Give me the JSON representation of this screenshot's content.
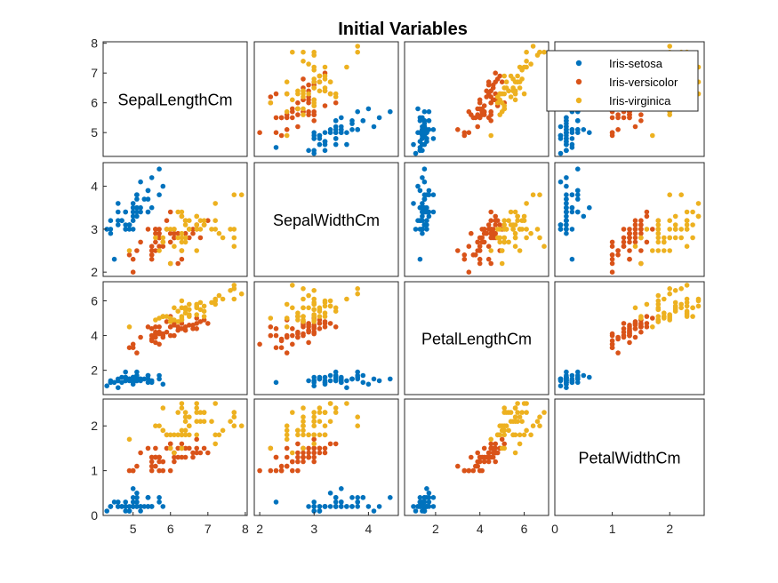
{
  "chart_data": {
    "type": "scatter",
    "title": "Initial Variables",
    "variables": [
      "SepalLengthCm",
      "SepalWidthCm",
      "PetalLengthCm",
      "PetalWidthCm"
    ],
    "ranges": [
      [
        4.2,
        8.05
      ],
      [
        1.9,
        4.55
      ],
      [
        0.6,
        7.1
      ],
      [
        0.0,
        2.6
      ]
    ],
    "ticks": [
      [
        5,
        6,
        7,
        8
      ],
      [
        2,
        3,
        4
      ],
      [
        2,
        4,
        6
      ],
      [
        0,
        1,
        2
      ]
    ],
    "colors": {
      "Iris-setosa": "#0072BD",
      "Iris-versicolor": "#D95319",
      "Iris-virginica": "#EDB120"
    },
    "legend": {
      "position": "top-right",
      "entries": [
        "Iris-setosa",
        "Iris-versicolor",
        "Iris-virginica"
      ]
    },
    "series": [
      {
        "name": "Iris-setosa",
        "points": [
          [
            5.1,
            3.5,
            1.4,
            0.2
          ],
          [
            4.9,
            3.0,
            1.4,
            0.2
          ],
          [
            4.7,
            3.2,
            1.3,
            0.2
          ],
          [
            4.6,
            3.1,
            1.5,
            0.2
          ],
          [
            5.0,
            3.6,
            1.4,
            0.2
          ],
          [
            5.4,
            3.9,
            1.7,
            0.4
          ],
          [
            4.6,
            3.4,
            1.4,
            0.3
          ],
          [
            5.0,
            3.4,
            1.5,
            0.2
          ],
          [
            4.4,
            2.9,
            1.4,
            0.2
          ],
          [
            4.9,
            3.1,
            1.5,
            0.1
          ],
          [
            5.4,
            3.7,
            1.5,
            0.2
          ],
          [
            4.8,
            3.4,
            1.6,
            0.2
          ],
          [
            4.8,
            3.0,
            1.4,
            0.1
          ],
          [
            4.3,
            3.0,
            1.1,
            0.1
          ],
          [
            5.8,
            4.0,
            1.2,
            0.2
          ],
          [
            5.7,
            4.4,
            1.5,
            0.4
          ],
          [
            5.4,
            3.9,
            1.3,
            0.4
          ],
          [
            5.1,
            3.5,
            1.4,
            0.3
          ],
          [
            5.7,
            3.8,
            1.7,
            0.3
          ],
          [
            5.1,
            3.8,
            1.5,
            0.3
          ],
          [
            5.4,
            3.4,
            1.7,
            0.2
          ],
          [
            5.1,
            3.7,
            1.5,
            0.4
          ],
          [
            4.6,
            3.6,
            1.0,
            0.2
          ],
          [
            5.1,
            3.3,
            1.7,
            0.5
          ],
          [
            4.8,
            3.4,
            1.9,
            0.2
          ],
          [
            5.0,
            3.0,
            1.6,
            0.2
          ],
          [
            5.0,
            3.4,
            1.6,
            0.4
          ],
          [
            5.2,
            3.5,
            1.5,
            0.2
          ],
          [
            5.2,
            3.4,
            1.4,
            0.2
          ],
          [
            4.7,
            3.2,
            1.6,
            0.2
          ],
          [
            4.8,
            3.1,
            1.6,
            0.2
          ],
          [
            5.4,
            3.4,
            1.5,
            0.4
          ],
          [
            5.2,
            4.1,
            1.5,
            0.1
          ],
          [
            5.5,
            4.2,
            1.4,
            0.2
          ],
          [
            4.9,
            3.1,
            1.5,
            0.1
          ],
          [
            5.0,
            3.2,
            1.2,
            0.2
          ],
          [
            5.5,
            3.5,
            1.3,
            0.2
          ],
          [
            4.9,
            3.1,
            1.5,
            0.1
          ],
          [
            4.4,
            3.0,
            1.3,
            0.2
          ],
          [
            5.1,
            3.4,
            1.5,
            0.2
          ],
          [
            5.0,
            3.5,
            1.3,
            0.3
          ],
          [
            4.5,
            2.3,
            1.3,
            0.3
          ],
          [
            4.4,
            3.2,
            1.3,
            0.2
          ],
          [
            5.0,
            3.5,
            1.6,
            0.6
          ],
          [
            5.1,
            3.8,
            1.9,
            0.4
          ],
          [
            4.8,
            3.0,
            1.4,
            0.3
          ],
          [
            5.1,
            3.8,
            1.6,
            0.2
          ],
          [
            4.6,
            3.2,
            1.4,
            0.2
          ],
          [
            5.3,
            3.7,
            1.5,
            0.2
          ],
          [
            5.0,
            3.3,
            1.4,
            0.2
          ]
        ]
      },
      {
        "name": "Iris-versicolor",
        "points": [
          [
            7.0,
            3.2,
            4.7,
            1.4
          ],
          [
            6.4,
            3.2,
            4.5,
            1.5
          ],
          [
            6.9,
            3.1,
            4.9,
            1.5
          ],
          [
            5.5,
            2.3,
            4.0,
            1.3
          ],
          [
            6.5,
            2.8,
            4.6,
            1.5
          ],
          [
            5.7,
            2.8,
            4.5,
            1.3
          ],
          [
            6.3,
            3.3,
            4.7,
            1.6
          ],
          [
            4.9,
            2.4,
            3.3,
            1.0
          ],
          [
            6.6,
            2.9,
            4.6,
            1.3
          ],
          [
            5.2,
            2.7,
            3.9,
            1.4
          ],
          [
            5.0,
            2.0,
            3.5,
            1.0
          ],
          [
            5.9,
            3.0,
            4.2,
            1.5
          ],
          [
            6.0,
            2.2,
            4.0,
            1.0
          ],
          [
            6.1,
            2.9,
            4.7,
            1.4
          ],
          [
            5.6,
            2.9,
            3.6,
            1.3
          ],
          [
            6.7,
            3.1,
            4.4,
            1.4
          ],
          [
            5.6,
            3.0,
            4.5,
            1.5
          ],
          [
            5.8,
            2.7,
            4.1,
            1.0
          ],
          [
            6.2,
            2.2,
            4.5,
            1.5
          ],
          [
            5.6,
            2.5,
            3.9,
            1.1
          ],
          [
            5.9,
            3.2,
            4.8,
            1.8
          ],
          [
            6.1,
            2.8,
            4.0,
            1.3
          ],
          [
            6.3,
            2.5,
            4.9,
            1.5
          ],
          [
            6.1,
            2.8,
            4.7,
            1.2
          ],
          [
            6.4,
            2.9,
            4.3,
            1.3
          ],
          [
            6.6,
            3.0,
            4.4,
            1.4
          ],
          [
            6.8,
            2.8,
            4.8,
            1.4
          ],
          [
            6.7,
            3.0,
            5.0,
            1.7
          ],
          [
            6.0,
            2.9,
            4.5,
            1.5
          ],
          [
            5.7,
            2.6,
            3.5,
            1.0
          ],
          [
            5.5,
            2.4,
            3.8,
            1.1
          ],
          [
            5.5,
            2.4,
            3.7,
            1.0
          ],
          [
            5.8,
            2.7,
            3.9,
            1.2
          ],
          [
            6.0,
            2.7,
            5.1,
            1.6
          ],
          [
            5.4,
            3.0,
            4.5,
            1.5
          ],
          [
            6.0,
            3.4,
            4.5,
            1.6
          ],
          [
            6.7,
            3.1,
            4.7,
            1.5
          ],
          [
            6.3,
            2.3,
            4.4,
            1.3
          ],
          [
            5.6,
            3.0,
            4.1,
            1.3
          ],
          [
            5.5,
            2.5,
            4.0,
            1.3
          ],
          [
            5.5,
            2.6,
            4.4,
            1.2
          ],
          [
            6.1,
            3.0,
            4.6,
            1.4
          ],
          [
            5.8,
            2.6,
            4.0,
            1.2
          ],
          [
            5.0,
            2.3,
            3.3,
            1.0
          ],
          [
            5.6,
            2.7,
            4.2,
            1.3
          ],
          [
            5.7,
            3.0,
            4.2,
            1.2
          ],
          [
            5.7,
            2.9,
            4.2,
            1.3
          ],
          [
            6.2,
            2.9,
            4.3,
            1.3
          ],
          [
            5.1,
            2.5,
            3.0,
            1.1
          ],
          [
            5.7,
            2.8,
            4.1,
            1.3
          ]
        ]
      },
      {
        "name": "Iris-virginica",
        "points": [
          [
            6.3,
            3.3,
            6.0,
            2.5
          ],
          [
            5.8,
            2.7,
            5.1,
            1.9
          ],
          [
            7.1,
            3.0,
            5.9,
            2.1
          ],
          [
            6.3,
            2.9,
            5.6,
            1.8
          ],
          [
            6.5,
            3.0,
            5.8,
            2.2
          ],
          [
            7.6,
            3.0,
            6.6,
            2.1
          ],
          [
            4.9,
            2.5,
            4.5,
            1.7
          ],
          [
            7.3,
            2.9,
            6.3,
            1.8
          ],
          [
            6.7,
            2.5,
            5.8,
            1.8
          ],
          [
            7.2,
            3.6,
            6.1,
            2.5
          ],
          [
            6.5,
            3.2,
            5.1,
            2.0
          ],
          [
            6.4,
            2.7,
            5.3,
            1.9
          ],
          [
            6.8,
            3.0,
            5.5,
            2.1
          ],
          [
            5.7,
            2.5,
            5.0,
            2.0
          ],
          [
            5.8,
            2.8,
            5.1,
            2.4
          ],
          [
            6.4,
            3.2,
            5.3,
            2.3
          ],
          [
            6.5,
            3.0,
            5.5,
            1.8
          ],
          [
            7.7,
            3.8,
            6.7,
            2.2
          ],
          [
            7.7,
            2.6,
            6.9,
            2.3
          ],
          [
            6.0,
            2.2,
            5.0,
            1.5
          ],
          [
            6.9,
            3.2,
            5.7,
            2.3
          ],
          [
            5.6,
            2.8,
            4.9,
            2.0
          ],
          [
            7.7,
            2.8,
            6.7,
            2.0
          ],
          [
            6.3,
            2.7,
            4.9,
            1.8
          ],
          [
            6.7,
            3.3,
            5.7,
            2.1
          ],
          [
            7.2,
            3.2,
            6.0,
            1.8
          ],
          [
            6.2,
            2.8,
            4.8,
            1.8
          ],
          [
            6.1,
            3.0,
            4.9,
            1.8
          ],
          [
            6.4,
            2.8,
            5.6,
            2.1
          ],
          [
            7.2,
            3.0,
            5.8,
            1.6
          ],
          [
            7.4,
            2.8,
            6.1,
            1.9
          ],
          [
            7.9,
            3.8,
            6.4,
            2.0
          ],
          [
            6.4,
            2.8,
            5.6,
            2.2
          ],
          [
            6.3,
            2.8,
            5.1,
            1.5
          ],
          [
            6.1,
            2.6,
            5.6,
            1.4
          ],
          [
            7.7,
            3.0,
            6.1,
            2.3
          ],
          [
            6.3,
            3.4,
            5.6,
            2.4
          ],
          [
            6.4,
            3.1,
            5.5,
            1.8
          ],
          [
            6.0,
            3.0,
            4.8,
            1.8
          ],
          [
            6.9,
            3.1,
            5.4,
            2.1
          ],
          [
            6.7,
            3.1,
            5.6,
            2.4
          ],
          [
            6.9,
            3.1,
            5.1,
            2.3
          ],
          [
            5.8,
            2.7,
            5.1,
            1.9
          ],
          [
            6.8,
            3.2,
            5.9,
            2.3
          ],
          [
            6.7,
            3.3,
            5.7,
            2.5
          ],
          [
            6.7,
            3.0,
            5.2,
            2.3
          ],
          [
            6.3,
            2.5,
            5.0,
            1.9
          ],
          [
            6.5,
            3.0,
            5.2,
            2.0
          ],
          [
            6.2,
            3.4,
            5.4,
            2.3
          ],
          [
            5.9,
            3.0,
            5.1,
            1.8
          ]
        ]
      }
    ]
  }
}
